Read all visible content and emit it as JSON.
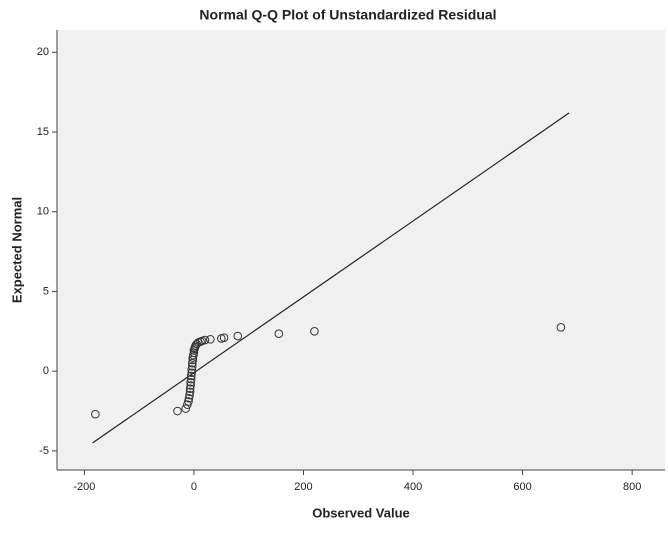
{
  "chart_data": {
    "type": "scatter",
    "title": "Normal Q-Q Plot of Unstandardized Residual",
    "xlabel": "Observed Value",
    "ylabel": "Expected Normal",
    "x": [
      -180,
      -30,
      -15,
      -12,
      -10,
      -9,
      -8,
      -7,
      -7,
      -6,
      -6,
      -5,
      -5,
      -4,
      -4,
      -3,
      -3,
      -2,
      -2,
      -1,
      0,
      0,
      1,
      2,
      3,
      5,
      8,
      12,
      15,
      20,
      30,
      50,
      55,
      80,
      155,
      220,
      670
    ],
    "y": [
      -2.7,
      -2.5,
      -2.35,
      -2.1,
      -1.9,
      -1.7,
      -1.5,
      -1.3,
      -1.1,
      -0.9,
      -0.7,
      -0.5,
      -0.3,
      -0.1,
      0.1,
      0.3,
      0.5,
      0.7,
      0.85,
      1.0,
      1.15,
      1.3,
      1.4,
      1.5,
      1.6,
      1.7,
      1.8,
      1.85,
      1.9,
      1.95,
      2.0,
      2.05,
      2.1,
      2.2,
      2.35,
      2.5,
      2.75
    ],
    "reference_line": {
      "x": [
        -185,
        685
      ],
      "y": [
        -4.5,
        16.2
      ]
    },
    "xlim": [
      -250,
      860
    ],
    "ylim": [
      -6.2,
      21.4
    ],
    "xticks": [
      -200,
      0,
      200,
      400,
      600,
      800
    ],
    "yticks": [
      -5,
      0,
      5,
      10,
      15,
      20
    ],
    "background": "#f0f0f0",
    "color": "#333333"
  }
}
